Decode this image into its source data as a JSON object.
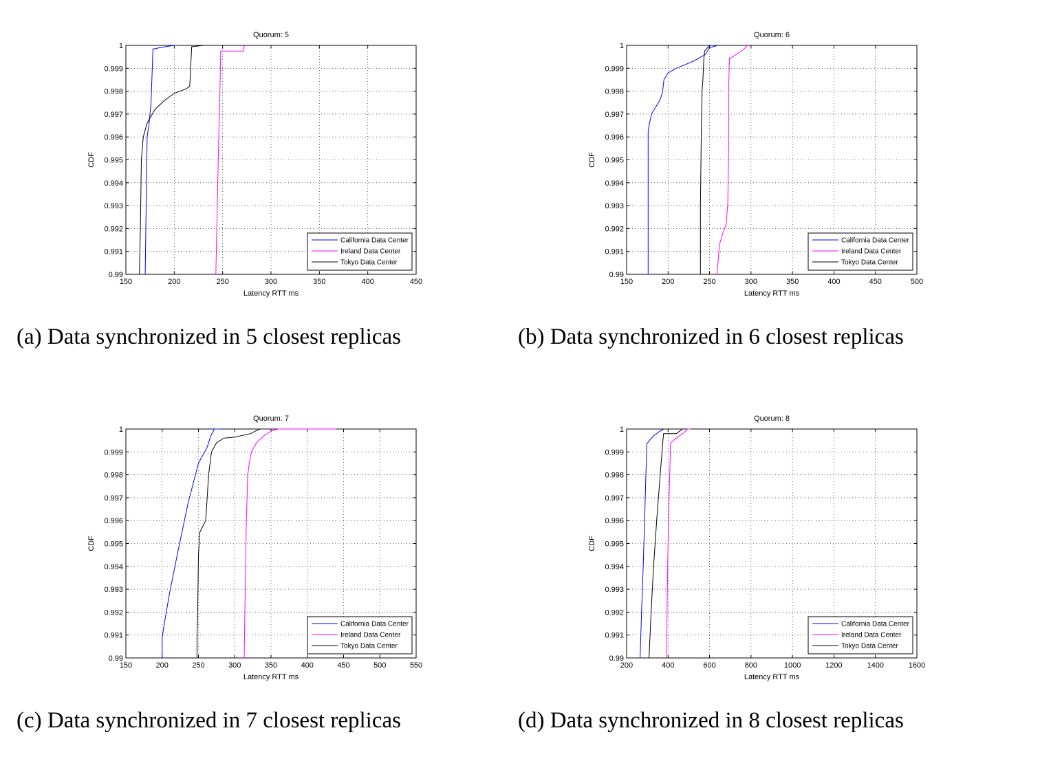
{
  "captions": {
    "a": "(a) Data synchronized in 5 closest replicas",
    "b": "(b) Data synchronized in 6 closest replicas",
    "c": "(c) Data synchronized in 7 closest replicas",
    "d": "(d) Data synchronized in 8 closest replicas"
  },
  "colors": {
    "california": "#0000ff",
    "ireland": "#ff00ff",
    "tokyo": "#000000"
  },
  "chart_data": [
    {
      "type": "line",
      "title": "Quorum: 5",
      "xlabel": "Latency RTT ms",
      "ylabel": "CDF",
      "xlim": [
        150,
        450
      ],
      "ylim": [
        0.99,
        1
      ],
      "xticks": [
        150,
        200,
        250,
        300,
        350,
        400,
        450
      ],
      "yticks": [
        "0.99",
        "0.991",
        "0.992",
        "0.993",
        "0.994",
        "0.995",
        "0.996",
        "0.997",
        "0.998",
        "0.999",
        "1"
      ],
      "grid": true,
      "legend_position": "bottom-right",
      "series": [
        {
          "name": "California Data Center",
          "color": "#0000ff",
          "x": [
            170,
            171,
            172,
            174,
            176,
            178,
            180,
            185,
            200,
            205
          ],
          "y": [
            0.99,
            0.993,
            0.996,
            0.9966,
            0.9975,
            0.99985,
            0.99985,
            0.9999,
            1.0,
            1.0
          ]
        },
        {
          "name": "Ireland Data Center",
          "color": "#ff00ff",
          "x": [
            243,
            244,
            245,
            246,
            247,
            248,
            250,
            270,
            272,
            272,
            274
          ],
          "y": [
            0.99,
            0.992,
            0.994,
            0.996,
            0.9975,
            0.99975,
            0.99975,
            0.99975,
            0.99975,
            0.99995,
            1.0
          ]
        },
        {
          "name": "Tokyo Data Center",
          "color": "#000000",
          "x": [
            164,
            165,
            166,
            168,
            172,
            180,
            190,
            200,
            212,
            216,
            218,
            220,
            230,
            235
          ],
          "y": [
            0.99,
            0.992,
            0.995,
            0.996,
            0.9966,
            0.9972,
            0.9976,
            0.9979,
            0.9981,
            0.9982,
            0.99995,
            0.99995,
            1.0,
            1.0
          ]
        }
      ]
    },
    {
      "type": "line",
      "title": "Quorum: 6",
      "xlabel": "Latency RTT ms",
      "ylabel": "CDF",
      "xlim": [
        150,
        500
      ],
      "ylim": [
        0.99,
        1
      ],
      "xticks": [
        150,
        200,
        250,
        300,
        350,
        400,
        450,
        500
      ],
      "yticks": [
        "0.99",
        "0.991",
        "0.992",
        "0.993",
        "0.994",
        "0.995",
        "0.996",
        "0.997",
        "0.998",
        "0.999",
        "1"
      ],
      "grid": true,
      "legend_position": "bottom-right",
      "series": [
        {
          "name": "California Data Center",
          "color": "#0000ff",
          "x": [
            176,
            176,
            177,
            180,
            185,
            190,
            193,
            194,
            195,
            200,
            210,
            230,
            245,
            250,
            260
          ],
          "y": [
            0.99,
            0.9962,
            0.9965,
            0.997,
            0.9973,
            0.9976,
            0.9979,
            0.9982,
            0.9985,
            0.9988,
            0.999,
            0.9993,
            0.9996,
            0.9999,
            1.0
          ]
        },
        {
          "name": "Ireland Data Center",
          "color": "#ff00ff",
          "x": [
            259,
            262,
            266,
            270,
            272,
            273,
            273,
            274,
            276,
            290,
            296
          ],
          "y": [
            0.99,
            0.9913,
            0.9918,
            0.9922,
            0.9931,
            0.9955,
            0.998,
            0.99945,
            0.99945,
            0.9998,
            1.0
          ]
        },
        {
          "name": "Tokyo Data Center",
          "color": "#000000",
          "x": [
            239,
            239,
            240,
            241,
            242,
            243,
            244,
            244,
            250
          ],
          "y": [
            0.99,
            0.993,
            0.996,
            0.998,
            0.9985,
            0.9993,
            0.99975,
            0.99975,
            1.0
          ]
        }
      ]
    },
    {
      "type": "line",
      "title": "Quorum: 7",
      "xlabel": "Latency RTT ms",
      "ylabel": "CDF",
      "xlim": [
        150,
        550
      ],
      "ylim": [
        0.99,
        1
      ],
      "xticks": [
        150,
        200,
        250,
        300,
        350,
        400,
        450,
        500,
        550
      ],
      "yticks": [
        "0.99",
        "0.991",
        "0.992",
        "0.993",
        "0.994",
        "0.995",
        "0.996",
        "0.997",
        "0.998",
        "0.999",
        "1"
      ],
      "grid": true,
      "legend_position": "bottom-right",
      "series": [
        {
          "name": "California Data Center",
          "color": "#0000ff",
          "x": [
            200,
            200,
            203,
            210,
            222,
            236,
            250,
            262,
            267,
            272,
            280
          ],
          "y": [
            0.99,
            0.9909,
            0.9915,
            0.9928,
            0.9947,
            0.9968,
            0.9985,
            0.9992,
            0.9997,
            1.0,
            1.0
          ]
        },
        {
          "name": "Ireland Data Center",
          "color": "#ff00ff",
          "x": [
            313,
            314,
            315,
            316,
            317,
            318,
            320,
            323,
            330,
            340,
            350,
            360,
            440
          ],
          "y": [
            0.99,
            0.992,
            0.994,
            0.996,
            0.997,
            0.998,
            0.9985,
            0.999,
            0.9994,
            0.9997,
            0.9999,
            1.0,
            1.0
          ]
        },
        {
          "name": "Tokyo Data Center",
          "color": "#000000",
          "x": [
            248,
            248,
            249,
            250,
            252,
            260,
            262,
            264,
            268,
            275,
            285,
            300,
            322,
            328,
            335
          ],
          "y": [
            0.99,
            0.991,
            0.992,
            0.9945,
            0.9955,
            0.996,
            0.997,
            0.998,
            0.999,
            0.9994,
            0.9996,
            0.99965,
            0.9998,
            0.9999,
            1.0
          ]
        }
      ]
    },
    {
      "type": "line",
      "title": "Quorum: 8",
      "xlabel": "Latency RTT ms",
      "ylabel": "CDF",
      "xlim": [
        200,
        1600
      ],
      "ylim": [
        0.99,
        1
      ],
      "xticks": [
        200,
        400,
        600,
        800,
        1000,
        1200,
        1400,
        1600
      ],
      "yticks": [
        "0.99",
        "0.991",
        "0.992",
        "0.993",
        "0.994",
        "0.995",
        "0.996",
        "0.997",
        "0.998",
        "0.999",
        "1"
      ],
      "grid": true,
      "legend_position": "bottom-right",
      "series": [
        {
          "name": "California Data Center",
          "color": "#0000ff",
          "x": [
            265,
            272,
            280,
            287,
            293,
            298,
            310,
            330,
            360,
            380
          ],
          "y": [
            0.99,
            0.992,
            0.994,
            0.996,
            0.998,
            0.99935,
            0.9995,
            0.9997,
            0.9999,
            1.0
          ]
        },
        {
          "name": "Ireland Data Center",
          "color": "#ff00ff",
          "x": [
            393,
            395,
            398,
            402,
            408,
            412,
            440,
            470,
            495,
            510
          ],
          "y": [
            0.99,
            0.992,
            0.994,
            0.996,
            0.998,
            0.9994,
            0.9996,
            0.9998,
            1.0,
            1.0
          ]
        },
        {
          "name": "Tokyo Data Center",
          "color": "#000000",
          "x": [
            308,
            318,
            330,
            345,
            362,
            375,
            378,
            400,
            440,
            455,
            470
          ],
          "y": [
            0.99,
            0.992,
            0.994,
            0.996,
            0.998,
            0.9995,
            0.9998,
            0.9998,
            0.9998,
            0.9999,
            1.0
          ]
        }
      ]
    }
  ]
}
